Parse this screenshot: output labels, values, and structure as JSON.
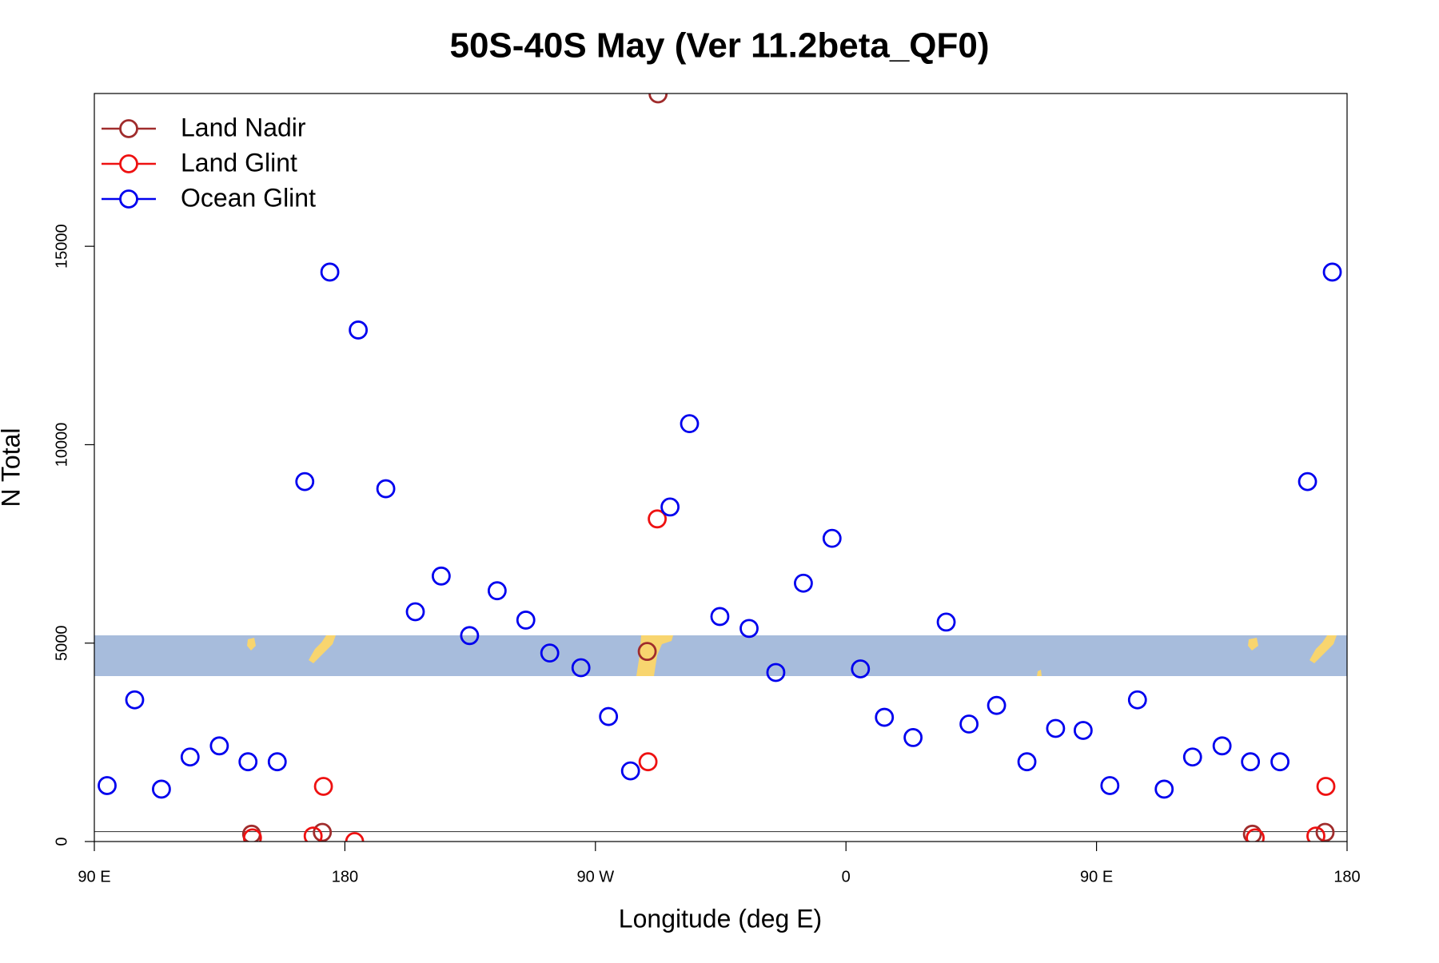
{
  "chart_data": {
    "type": "scatter",
    "title": "50S-40S May (Ver 11.2beta_QF0)",
    "xlabel": "Longitude (deg E)",
    "ylabel": "N Total",
    "xlim": [
      90,
      540
    ],
    "ylim": [
      0,
      18850
    ],
    "xticks": [
      {
        "value": 90,
        "label": "90 E"
      },
      {
        "value": 180,
        "label": "180"
      },
      {
        "value": 270,
        "label": "90 W"
      },
      {
        "value": 360,
        "label": "0"
      },
      {
        "value": 450,
        "label": "90 E"
      },
      {
        "value": 540,
        "label": "180"
      }
    ],
    "yticks": [
      0,
      5000,
      10000,
      15000
    ],
    "hline": 250,
    "legend": "top-left",
    "series": [
      {
        "name": "Land Nadir",
        "color": "#a02c2c",
        "x": [
          146.5,
          171.9,
          288.6,
          292.5,
          506.0,
          532.1
        ],
        "values": [
          185,
          231,
          4790,
          18840,
          185,
          231
        ]
      },
      {
        "name": "Land Glint",
        "color": "#ee1111",
        "x": [
          146.8,
          168.6,
          172.3,
          183.5,
          288.9,
          292.2,
          507.0,
          528.8,
          532.4
        ],
        "values": [
          93,
          139,
          1390,
          0,
          2010,
          8130,
          93,
          139,
          1390
        ]
      },
      {
        "name": "Ocean Glint",
        "color": "#0000ee",
        "x": [
          94.6,
          104.5,
          114.1,
          124.4,
          134.9,
          145.2,
          155.7,
          165.6,
          174.6,
          184.8,
          194.7,
          205.3,
          214.6,
          224.8,
          234.7,
          245.0,
          253.6,
          264.8,
          274.7,
          282.6,
          296.8,
          303.8,
          314.7,
          325.2,
          334.8,
          344.7,
          355.0,
          365.2,
          373.8,
          384.1,
          396.0,
          404.2,
          414.1,
          425.0,
          435.3,
          445.2,
          454.8,
          464.7,
          474.3,
          484.5,
          495.1,
          505.3,
          515.9,
          525.8,
          534.7
        ],
        "values": [
          1410,
          3570,
          1320,
          2130,
          2410,
          2010,
          2010,
          9070,
          14350,
          12890,
          8890,
          5790,
          6690,
          5190,
          6320,
          5580,
          4750,
          4380,
          3150,
          1780,
          8430,
          10530,
          5670,
          5370,
          4260,
          6510,
          7640,
          4350,
          3130,
          2620,
          5530,
          2960,
          3430,
          2010,
          2850,
          2800,
          1410,
          3570,
          1320,
          2130,
          2410,
          2010,
          2010,
          9070,
          14350
        ]
      }
    ]
  }
}
